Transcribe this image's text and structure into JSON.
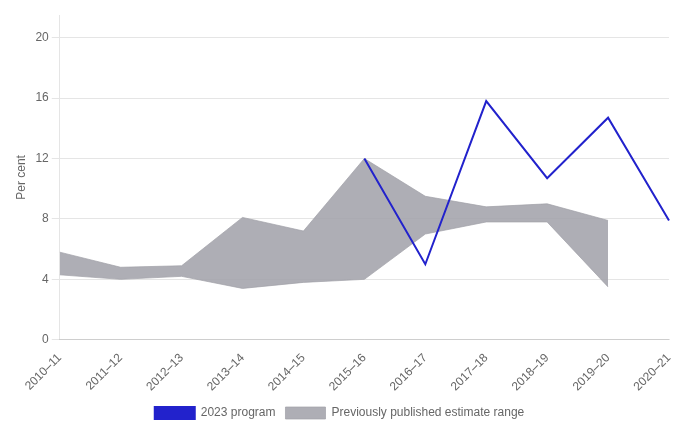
{
  "chart_data": {
    "type": "line",
    "categories": [
      "2010–11",
      "2011–12",
      "2012–13",
      "2013–14",
      "2014–15",
      "2015–16",
      "2016–17",
      "2017–18",
      "2018–19",
      "2019–20",
      "2020–21"
    ],
    "series": [
      {
        "name": "Previously published estimate range",
        "type": "band",
        "color": "#a0a0a8",
        "upper": [
          5.8,
          4.8,
          4.9,
          8.1,
          7.2,
          12.0,
          9.5,
          8.8,
          9.0,
          7.9,
          null
        ],
        "lower": [
          4.3,
          4.0,
          4.2,
          3.4,
          3.8,
          4.0,
          7.0,
          7.8,
          7.8,
          3.5,
          null
        ]
      },
      {
        "name": "2023 program",
        "type": "line",
        "color": "#2222cc",
        "values": [
          null,
          null,
          null,
          null,
          null,
          12.0,
          5.0,
          15.8,
          10.7,
          14.7,
          7.9
        ]
      }
    ],
    "ylabel": "Per cent",
    "ylim": [
      0,
      21.5
    ],
    "yticks": [
      0,
      4,
      8,
      12,
      16,
      20
    ],
    "grid": "y",
    "legend": "bottom"
  }
}
